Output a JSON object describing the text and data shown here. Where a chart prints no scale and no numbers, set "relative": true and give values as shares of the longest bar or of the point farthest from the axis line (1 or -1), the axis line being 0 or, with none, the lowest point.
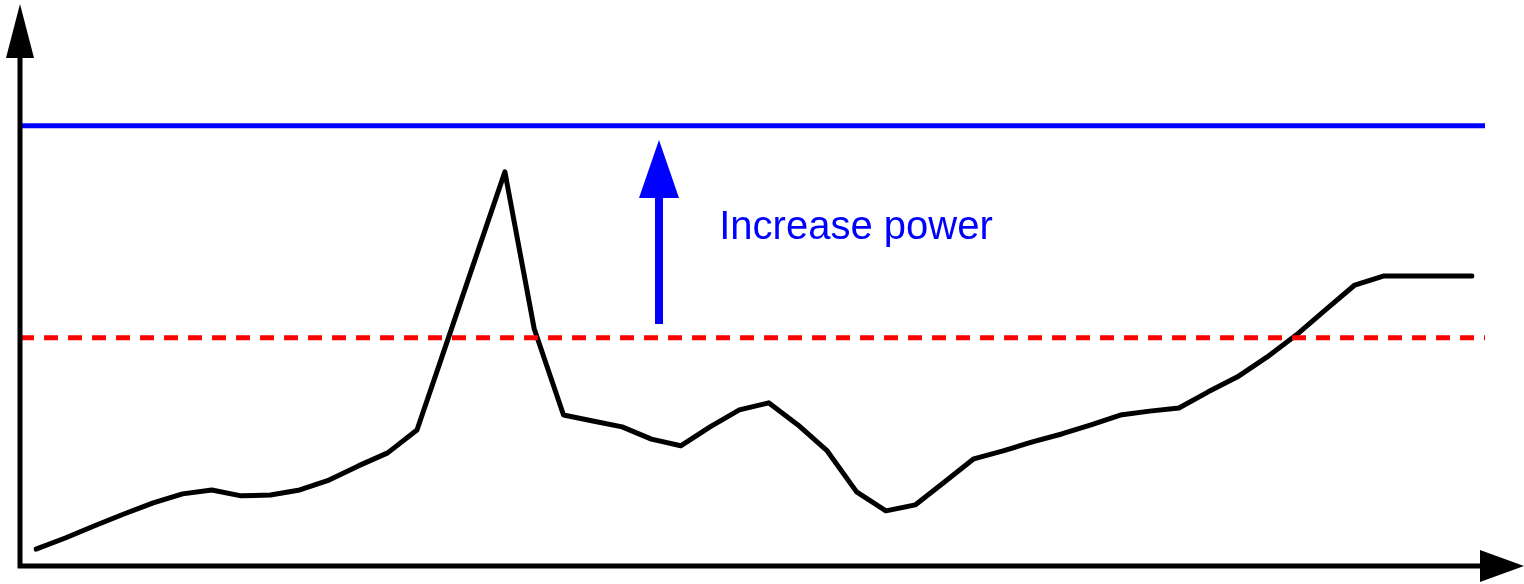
{
  "chart_data": {
    "type": "line",
    "relative": true,
    "legend": false,
    "marker": "none",
    "categories": [
      null,
      null,
      null,
      null,
      null,
      null,
      null,
      null,
      null,
      null,
      null,
      null,
      null,
      null,
      null,
      null,
      null,
      null,
      null,
      null,
      null,
      null,
      null,
      null,
      null,
      null,
      null,
      null,
      null,
      null,
      null,
      null,
      null,
      null,
      null,
      null,
      null,
      null,
      null,
      null,
      null,
      null,
      null,
      null,
      null,
      null,
      null,
      null,
      null,
      null
    ],
    "series": [
      {
        "color": "#000000",
        "values": [
          0.043,
          0.071,
          0.102,
          0.132,
          0.16,
          0.183,
          0.193,
          0.178,
          0.18,
          0.193,
          0.218,
          0.254,
          0.287,
          0.345,
          0.563,
          0.782,
          1,
          0.602,
          0.383,
          0.368,
          0.353,
          0.322,
          0.305,
          0.353,
          0.396,
          0.414,
          0.358,
          0.292,
          0.188,
          0.14,
          0.155,
          0.213,
          0.272,
          0.292,
          0.315,
          0.335,
          0.358,
          0.383,
          0.393,
          0.401,
          0.442,
          0.48,
          0.53,
          0.586,
          0.65,
          0.713,
          0.736,
          0.736,
          0.736,
          0.736
        ]
      }
    ],
    "ref_lines": [
      {
        "axis": "y",
        "value": 1.117,
        "color": "#0000ff",
        "line_style": "solid"
      },
      {
        "axis": "y",
        "value": 0.579,
        "color": "#ff0000",
        "line_style": "dashed"
      }
    ],
    "annotations": [
      "Increase power"
    ]
  }
}
